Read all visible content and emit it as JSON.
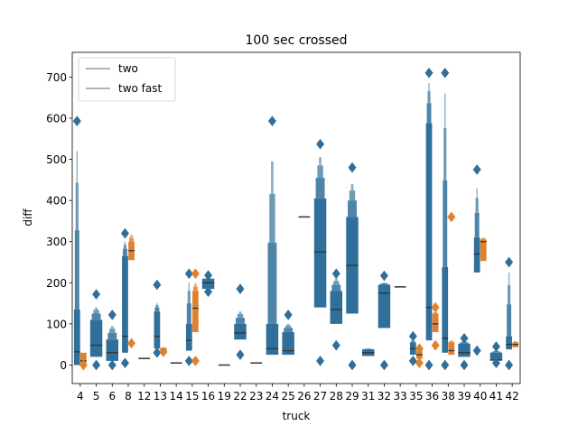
{
  "chart_data": {
    "type": "boxenplot",
    "title": "100 sec crossed",
    "xlabel": "truck",
    "ylabel": "diff",
    "ylim": [
      -45,
      760
    ],
    "yticks": [
      0,
      100,
      200,
      300,
      400,
      500,
      600,
      700
    ],
    "grid": false,
    "legend": {
      "placement": "top-left",
      "entries": [
        "two",
        "two fast"
      ]
    },
    "categories": [
      "4",
      "5",
      "6",
      "8",
      "12",
      "13",
      "14",
      "15",
      "16",
      "19",
      "22",
      "23",
      "24",
      "25",
      "26",
      "27",
      "28",
      "29",
      "31",
      "32",
      "33",
      "35",
      "36",
      "38",
      "39",
      "40",
      "41",
      "42"
    ],
    "series": [
      {
        "name": "two",
        "color": "#2f6f99",
        "boxes": [
          {
            "cat": "4",
            "q1": 0,
            "median": 32,
            "q3": 135,
            "whisker_high": 520,
            "outliers": [
              593
            ]
          },
          {
            "cat": "5",
            "q1": 20,
            "median": 48,
            "q3": 110,
            "whisker_high": 140,
            "outliers": [
              172,
              0
            ]
          },
          {
            "cat": "6",
            "q1": 10,
            "median": 30,
            "q3": 62,
            "whisker_high": 95,
            "outliers": [
              122,
              0
            ]
          },
          {
            "cat": "8",
            "q1": 30,
            "median": 70,
            "q3": 265,
            "whisker_high": 300,
            "outliers": [
              320,
              5
            ]
          },
          {
            "cat": "12",
            "q1": 16,
            "median": 16,
            "q3": 16,
            "whisker_high": 16,
            "outliers": []
          },
          {
            "cat": "13",
            "q1": 40,
            "median": 70,
            "q3": 130,
            "whisker_high": 150,
            "outliers": [
              195,
              30
            ]
          },
          {
            "cat": "14",
            "q1": 5,
            "median": 5,
            "q3": 5,
            "whisker_high": 5,
            "outliers": []
          },
          {
            "cat": "15",
            "q1": 35,
            "median": 60,
            "q3": 100,
            "whisker_high": 200,
            "outliers": [
              222,
              10
            ]
          },
          {
            "cat": "16",
            "q1": 185,
            "median": 200,
            "q3": 210,
            "whisker_high": 210,
            "outliers": [
              218,
              178
            ]
          },
          {
            "cat": "19",
            "q1": 0,
            "median": 0,
            "q3": 0,
            "whisker_high": 0,
            "outliers": []
          },
          {
            "cat": "22",
            "q1": 62,
            "median": 78,
            "q3": 100,
            "whisker_high": 130,
            "outliers": [
              185,
              25
            ]
          },
          {
            "cat": "23",
            "q1": 5,
            "median": 5,
            "q3": 5,
            "whisker_high": 5,
            "outliers": []
          },
          {
            "cat": "24",
            "q1": 25,
            "median": 40,
            "q3": 100,
            "whisker_high": 495,
            "outliers": [
              593
            ]
          },
          {
            "cat": "25",
            "q1": 25,
            "median": 35,
            "q3": 80,
            "whisker_high": 100,
            "outliers": [
              122
            ]
          },
          {
            "cat": "26",
            "q1": 360,
            "median": 360,
            "q3": 360,
            "whisker_high": 360,
            "outliers": []
          },
          {
            "cat": "27",
            "q1": 140,
            "median": 275,
            "q3": 405,
            "whisker_high": 505,
            "outliers": [
              537,
              10
            ]
          },
          {
            "cat": "28",
            "q1": 100,
            "median": 135,
            "q3": 180,
            "whisker_high": 210,
            "outliers": [
              222,
              48
            ]
          },
          {
            "cat": "29",
            "q1": 125,
            "median": 242,
            "q3": 360,
            "whisker_high": 440,
            "outliers": [
              480,
              0
            ]
          },
          {
            "cat": "31",
            "q1": 22,
            "median": 30,
            "q3": 38,
            "whisker_high": 40,
            "outliers": []
          },
          {
            "cat": "32",
            "q1": 90,
            "median": 175,
            "q3": 195,
            "whisker_high": 200,
            "outliers": [
              217,
              0
            ]
          },
          {
            "cat": "33",
            "q1": 190,
            "median": 190,
            "q3": 190,
            "whisker_high": 190,
            "outliers": []
          },
          {
            "cat": "35",
            "q1": 25,
            "median": 40,
            "q3": 55,
            "whisker_high": 60,
            "outliers": [
              70,
              10
            ]
          },
          {
            "cat": "36",
            "q1": 60,
            "median": 140,
            "q3": 588,
            "whisker_high": 685,
            "outliers": [
              710,
              0
            ]
          },
          {
            "cat": "38",
            "q1": 30,
            "median": 65,
            "q3": 238,
            "whisker_high": 660,
            "outliers": [
              710,
              0
            ]
          },
          {
            "cat": "39",
            "q1": 20,
            "median": 30,
            "q3": 52,
            "whisker_high": 58,
            "outliers": [
              65,
              0
            ]
          },
          {
            "cat": "40",
            "q1": 225,
            "median": 270,
            "q3": 310,
            "whisker_high": 430,
            "outliers": [
              475,
              35
            ]
          },
          {
            "cat": "41",
            "q1": 12,
            "median": 12,
            "q3": 30,
            "whisker_high": 35,
            "outliers": [
              45,
              5
            ]
          },
          {
            "cat": "42",
            "q1": 38,
            "median": 50,
            "q3": 70,
            "whisker_high": 225,
            "outliers": [
              250,
              0
            ]
          }
        ]
      },
      {
        "name": "two fast",
        "color": "#e1812c",
        "boxes": [
          {
            "cat": "4",
            "q1": 5,
            "median": 10,
            "q3": 30,
            "whisker_high": 30,
            "outliers": [
              0
            ]
          },
          {
            "cat": "8",
            "q1": 255,
            "median": 278,
            "q3": 300,
            "whisker_high": 318,
            "outliers": [
              53
            ]
          },
          {
            "cat": "13",
            "q1": 35,
            "median": 37,
            "q3": 42,
            "whisker_high": 42,
            "outliers": [
              32
            ]
          },
          {
            "cat": "15",
            "q1": 80,
            "median": 138,
            "q3": 180,
            "whisker_high": 200,
            "outliers": [
              222,
              10
            ]
          },
          {
            "cat": "35",
            "q1": 15,
            "median": 25,
            "q3": 35,
            "whisker_high": 38,
            "outliers": [
              40,
              5
            ]
          },
          {
            "cat": "36",
            "q1": 80,
            "median": 100,
            "q3": 125,
            "whisker_high": 130,
            "outliers": [
              140,
              48
            ]
          },
          {
            "cat": "38",
            "q1": 25,
            "median": 35,
            "q3": 55,
            "whisker_high": 60,
            "outliers": [
              360
            ]
          },
          {
            "cat": "40",
            "q1": 253,
            "median": 300,
            "q3": 305,
            "whisker_high": 310,
            "outliers": []
          },
          {
            "cat": "42",
            "q1": 43,
            "median": 50,
            "q3": 55,
            "whisker_high": 58,
            "outliers": []
          }
        ]
      }
    ]
  }
}
